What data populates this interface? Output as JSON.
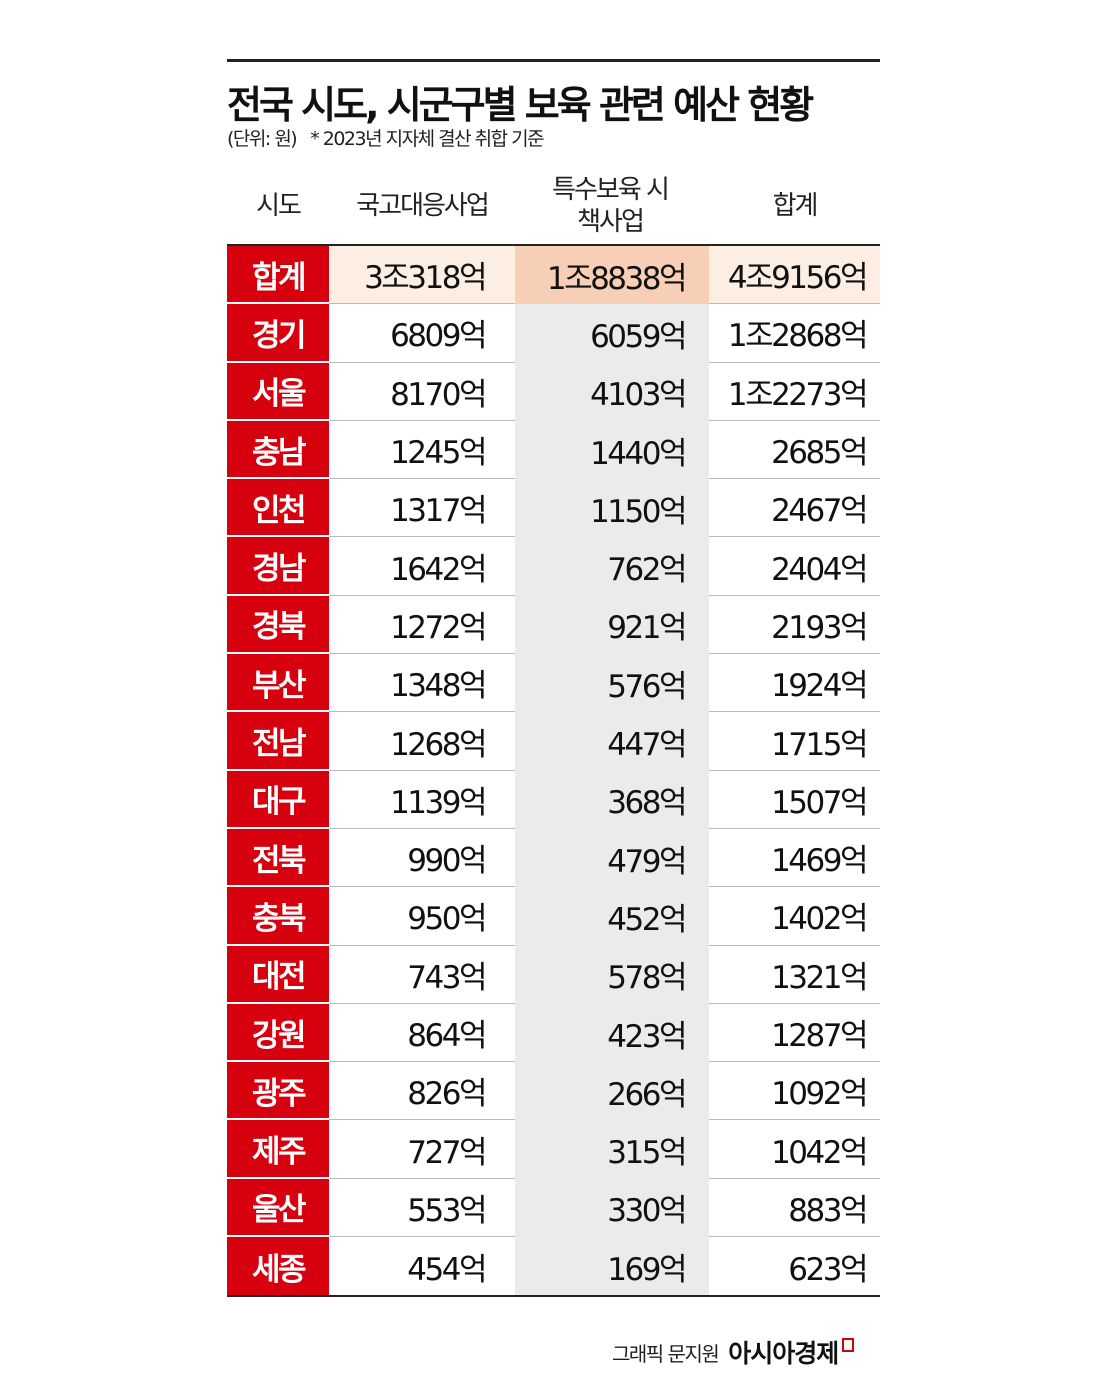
{
  "title": "전국 시도, 시군구별 보육 관련 예산 현황",
  "unit": "(단위: 원)",
  "note": "* 2023년 지자체 결산 취합 기준",
  "credit": "그래픽 문지원",
  "brand": "아시아경제",
  "colors": {
    "accent_red": "#d7000f",
    "total_row": "#fdeee3",
    "total_row_col2": "#f7cfb6",
    "col2_bg": "#ebebeb"
  },
  "chart_data": {
    "type": "table",
    "title": "전국 시도, 시군구별 보육 관련 예산 현황",
    "columns": [
      "시도",
      "국고대응사업",
      "특수보육 시책사업",
      "합계"
    ],
    "rows": [
      [
        "합계",
        "3조318억",
        "1조8838억",
        "4조9156억"
      ],
      [
        "경기",
        "6809억",
        "6059억",
        "1조2868억"
      ],
      [
        "서울",
        "8170억",
        "4103억",
        "1조2273억"
      ],
      [
        "충남",
        "1245억",
        "1440억",
        "2685억"
      ],
      [
        "인천",
        "1317억",
        "1150억",
        "2467억"
      ],
      [
        "경남",
        "1642억",
        "762억",
        "2404억"
      ],
      [
        "경북",
        "1272억",
        "921억",
        "2193억"
      ],
      [
        "부산",
        "1348억",
        "576억",
        "1924억"
      ],
      [
        "전남",
        "1268억",
        "447억",
        "1715억"
      ],
      [
        "대구",
        "1139억",
        "368억",
        "1507억"
      ],
      [
        "전북",
        "990억",
        "479억",
        "1469억"
      ],
      [
        "충북",
        "950억",
        "452억",
        "1402억"
      ],
      [
        "대전",
        "743억",
        "578억",
        "1321억"
      ],
      [
        "강원",
        "864억",
        "423억",
        "1287억"
      ],
      [
        "광주",
        "826억",
        "266억",
        "1092억"
      ],
      [
        "제주",
        "727억",
        "315억",
        "1042억"
      ],
      [
        "울산",
        "553억",
        "330억",
        "883억"
      ],
      [
        "세종",
        "454억",
        "169억",
        "623억"
      ]
    ]
  }
}
